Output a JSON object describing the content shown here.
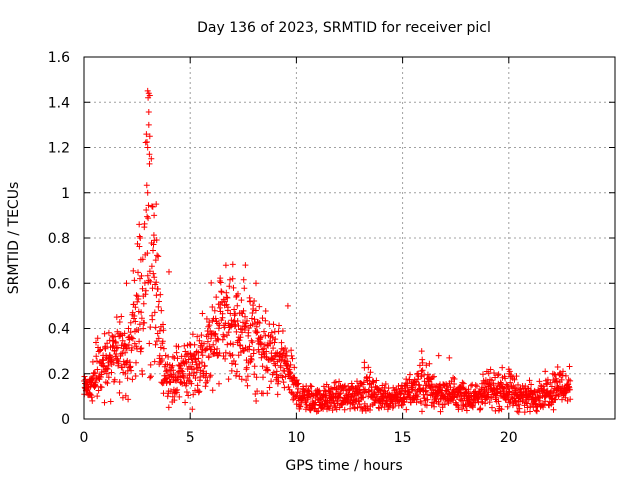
{
  "chart_data": {
    "type": "scatter",
    "title": "Day 136 of 2023, SRMTID for receiver picl",
    "xlabel": "GPS time / hours",
    "ylabel": "SRMTID / TECUs",
    "xlim": [
      0,
      25
    ],
    "ylim": [
      0,
      1.6
    ],
    "xticks": [
      0,
      5,
      10,
      15,
      20
    ],
    "xtick_labels": [
      "0",
      "5",
      "10",
      "15",
      "20"
    ],
    "yticks": [
      0,
      0.2,
      0.4,
      0.6,
      0.8,
      1.0,
      1.2,
      1.4,
      1.6
    ],
    "ytick_labels": [
      "0",
      "0.2",
      "0.4",
      "0.6",
      "0.8",
      "1",
      "1.2",
      "1.4",
      "1.6"
    ],
    "grid": true,
    "marker": "+",
    "color": "#ff0000",
    "series": [
      {
        "name": "SRMTID",
        "profile_x": [
          0.0,
          0.2,
          0.5,
          0.8,
          1.0,
          1.3,
          1.6,
          1.9,
          2.1,
          2.4,
          2.7,
          2.9,
          3.0,
          3.1,
          3.3,
          3.5,
          3.7,
          3.9,
          4.2,
          4.5,
          4.8,
          5.1,
          5.4,
          5.7,
          6.0,
          6.3,
          6.6,
          6.9,
          7.2,
          7.5,
          7.8,
          8.1,
          8.4,
          8.7,
          9.0,
          9.3,
          9.6,
          9.9,
          10.2,
          10.6,
          11.0,
          11.5,
          12.0,
          12.5,
          13.0,
          13.3,
          13.6,
          14.0,
          14.5,
          15.0,
          15.5,
          15.9,
          16.2,
          16.6,
          17.0,
          17.5,
          18.0,
          18.5,
          19.0,
          19.5,
          19.9,
          20.2,
          20.6,
          21.0,
          21.5,
          22.0,
          22.3,
          22.6,
          22.9
        ],
        "profile_y": [
          0.14,
          0.15,
          0.18,
          0.22,
          0.24,
          0.27,
          0.3,
          0.26,
          0.3,
          0.4,
          0.52,
          0.7,
          0.98,
          0.72,
          0.58,
          0.42,
          0.28,
          0.2,
          0.18,
          0.2,
          0.22,
          0.24,
          0.25,
          0.27,
          0.34,
          0.44,
          0.46,
          0.4,
          0.38,
          0.36,
          0.34,
          0.33,
          0.3,
          0.28,
          0.26,
          0.25,
          0.22,
          0.14,
          0.1,
          0.09,
          0.08,
          0.09,
          0.1,
          0.1,
          0.12,
          0.14,
          0.11,
          0.1,
          0.1,
          0.11,
          0.12,
          0.15,
          0.14,
          0.12,
          0.11,
          0.11,
          0.1,
          0.1,
          0.12,
          0.13,
          0.14,
          0.12,
          0.1,
          0.1,
          0.11,
          0.13,
          0.15,
          0.14,
          0.14
        ],
        "profile_spread": [
          0.02,
          0.03,
          0.05,
          0.06,
          0.07,
          0.08,
          0.09,
          0.09,
          0.1,
          0.13,
          0.18,
          0.25,
          0.35,
          0.28,
          0.2,
          0.14,
          0.08,
          0.05,
          0.05,
          0.06,
          0.07,
          0.08,
          0.08,
          0.09,
          0.11,
          0.13,
          0.13,
          0.13,
          0.12,
          0.12,
          0.11,
          0.1,
          0.09,
          0.09,
          0.08,
          0.07,
          0.06,
          0.04,
          0.03,
          0.03,
          0.03,
          0.03,
          0.03,
          0.03,
          0.04,
          0.05,
          0.03,
          0.03,
          0.03,
          0.03,
          0.04,
          0.06,
          0.05,
          0.04,
          0.03,
          0.03,
          0.03,
          0.03,
          0.04,
          0.04,
          0.04,
          0.04,
          0.03,
          0.03,
          0.03,
          0.04,
          0.04,
          0.04,
          0.04
        ],
        "extra_points": [
          {
            "x": 3.0,
            "y": 1.45
          },
          {
            "x": 3.05,
            "y": 1.44
          },
          {
            "x": 3.1,
            "y": 1.43
          },
          {
            "x": 3.02,
            "y": 1.42
          },
          {
            "x": 3.1,
            "y": 1.25
          },
          {
            "x": 3.0,
            "y": 1.2
          },
          {
            "x": 3.08,
            "y": 1.17
          },
          {
            "x": 3.05,
            "y": 1.3
          },
          {
            "x": 3.0,
            "y": 1.0
          },
          {
            "x": 3.2,
            "y": 0.94
          },
          {
            "x": 3.4,
            "y": 0.95
          },
          {
            "x": 2.6,
            "y": 0.86
          },
          {
            "x": 2.65,
            "y": 0.8
          },
          {
            "x": 3.3,
            "y": 0.9
          },
          {
            "x": 7.6,
            "y": 0.68
          },
          {
            "x": 6.4,
            "y": 0.61
          },
          {
            "x": 7.0,
            "y": 0.62
          },
          {
            "x": 4.0,
            "y": 0.65
          },
          {
            "x": 2.0,
            "y": 0.6
          },
          {
            "x": 8.1,
            "y": 0.6
          },
          {
            "x": 9.6,
            "y": 0.5
          },
          {
            "x": 13.2,
            "y": 0.25
          },
          {
            "x": 15.9,
            "y": 0.3
          },
          {
            "x": 16.7,
            "y": 0.28
          },
          {
            "x": 17.2,
            "y": 0.27
          },
          {
            "x": 20.0,
            "y": 0.22
          },
          {
            "x": 22.3,
            "y": 0.23
          }
        ]
      }
    ]
  }
}
